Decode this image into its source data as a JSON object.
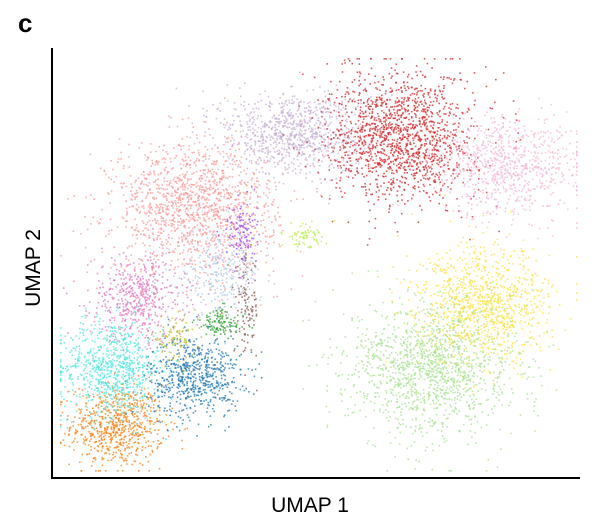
{
  "panel_label": "c",
  "chart_data": {
    "type": "scatter",
    "xlabel": "UMAP 1",
    "ylabel": "UMAP 2",
    "xlim": [
      0,
      100
    ],
    "ylim": [
      0,
      100
    ],
    "grid": false,
    "legend": "none",
    "clusters": [
      {
        "color": "#ff7f0e",
        "cx": 11,
        "cy": 11,
        "sx": 4.5,
        "sy": 5,
        "n": 700
      },
      {
        "color": "#4ee8e0",
        "cx": 10,
        "cy": 25,
        "sx": 5,
        "sy": 6,
        "n": 800
      },
      {
        "color": "#1f77b4",
        "cx": 26,
        "cy": 23,
        "sx": 4.5,
        "sy": 5,
        "n": 650
      },
      {
        "color": "#e377c2",
        "cx": 15,
        "cy": 42,
        "sx": 4.5,
        "sy": 5,
        "n": 500
      },
      {
        "color": "#2ca02c",
        "cx": 31,
        "cy": 36,
        "sx": 2.5,
        "sy": 1.8,
        "n": 120
      },
      {
        "color": "#bcbd22",
        "cx": 22,
        "cy": 32,
        "sx": 2.2,
        "sy": 2.5,
        "n": 90
      },
      {
        "color": "#8c564b",
        "cx": 36,
        "cy": 40,
        "sx": 1.2,
        "sy": 6,
        "n": 110
      },
      {
        "color": "#aec7e8",
        "cx": 31,
        "cy": 48,
        "sx": 4,
        "sy": 5,
        "n": 300
      },
      {
        "color": "#ff9896",
        "cx": 26,
        "cy": 64,
        "sx": 8,
        "sy": 8,
        "n": 1400
      },
      {
        "color": "#9b4dff",
        "cx": 35,
        "cy": 58,
        "sx": 1.5,
        "sy": 4,
        "n": 120
      },
      {
        "color": "#c5b0d5",
        "cx": 45,
        "cy": 82,
        "sx": 7,
        "sy": 5,
        "n": 900
      },
      {
        "color": "#d62728",
        "cx": 66,
        "cy": 81,
        "sx": 7,
        "sy": 8,
        "n": 1500
      },
      {
        "color": "#f7b6d2",
        "cx": 87,
        "cy": 74,
        "sx": 7,
        "sy": 6,
        "n": 800
      },
      {
        "color": "#b5f04a",
        "cx": 47,
        "cy": 57,
        "sx": 2.2,
        "sy": 1.5,
        "n": 70
      },
      {
        "color": "#ffe135",
        "cx": 82,
        "cy": 40,
        "sx": 6.5,
        "sy": 7,
        "n": 1000
      },
      {
        "color": "#a5e38f",
        "cx": 72,
        "cy": 25,
        "sx": 8,
        "sy": 8,
        "n": 1400
      }
    ]
  }
}
